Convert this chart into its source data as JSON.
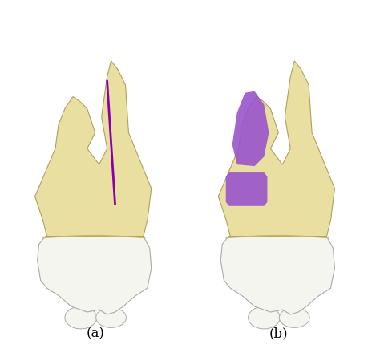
{
  "background_color": "#ffffff",
  "label_a": "(a)",
  "label_b": "(b)",
  "label_fontsize": 12,
  "tooth_yellow": "#e8dfa0",
  "tooth_yellow_shadow": "#c8b860",
  "tooth_white": "#ececec",
  "tooth_white_shadow": "#c0c0c0",
  "tooth_white_inner": "#f5f5f0",
  "purple_color": "#9955cc",
  "line_color": "#8800aa",
  "outline_color": "#b0a060"
}
